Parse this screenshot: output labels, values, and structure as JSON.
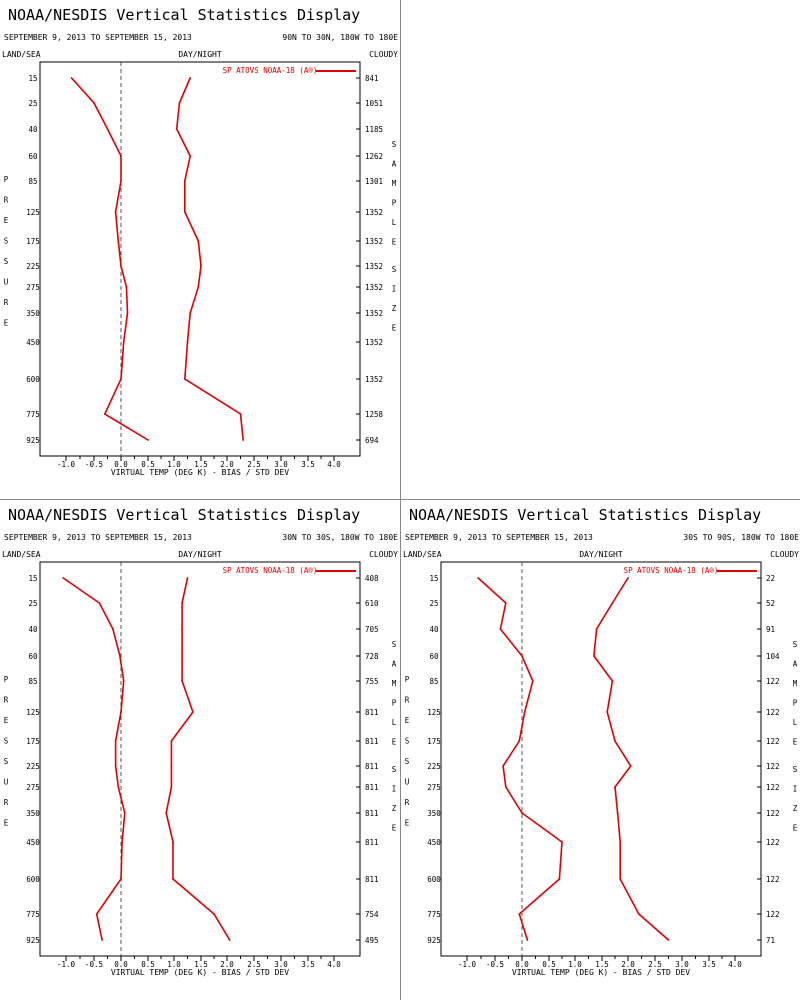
{
  "chart_data": [
    {
      "type": "line",
      "title": "NOAA/NESDIS Vertical Statistics Display",
      "date_range": "SEPTEMBER 9, 2013 TO SEPTEMBER 15, 2013",
      "region": "90N TO 30N, 180W TO 180E",
      "top_left_label": "LAND/SEA",
      "top_center_label": "DAY/NIGHT",
      "top_right_label": "CLOUDY",
      "left_axis_label": "PRESSURE",
      "right_axis_label": "SAMPLE SIZE",
      "xlabel": "VIRTUAL TEMP (DEG K) - BIAS / STD DEV",
      "legend": "SP ATOVS NOAA-18 (A®)",
      "xlim": [
        -1.5,
        4.5
      ],
      "x_ticks": [
        "-1.0",
        "-0.5",
        "0.0",
        "0.5",
        "1.0",
        "1.5",
        "2.0",
        "2.5",
        "3.0",
        "3.5",
        "4.0"
      ],
      "pressure_levels": [
        "15",
        "25",
        "40",
        "60",
        "85",
        "125",
        "175",
        "225",
        "275",
        "350",
        "450",
        "600",
        "775",
        "925"
      ],
      "sample_sizes": [
        "841",
        "1051",
        "1185",
        "1262",
        "1301",
        "1352",
        "1352",
        "1352",
        "1352",
        "1352",
        "1352",
        "1352",
        "1258",
        "694"
      ],
      "series": [
        {
          "role": "bias",
          "values": [
            -0.9,
            -0.5,
            -0.25,
            0.0,
            0.0,
            -0.1,
            -0.05,
            0.0,
            0.1,
            0.12,
            0.05,
            0.0,
            -0.3,
            0.5
          ]
        },
        {
          "role": "std_dev",
          "values": [
            1.3,
            1.1,
            1.05,
            1.3,
            1.2,
            1.2,
            1.45,
            1.5,
            1.45,
            1.3,
            1.25,
            1.2,
            2.25,
            2.3
          ]
        }
      ]
    },
    {
      "type": "line",
      "title": "NOAA/NESDIS Vertical Statistics Display",
      "date_range": "SEPTEMBER 9, 2013 TO SEPTEMBER 15, 2013",
      "region": "30N TO 30S, 180W TO 180E",
      "top_left_label": "LAND/SEA",
      "top_center_label": "DAY/NIGHT",
      "top_right_label": "CLOUDY",
      "left_axis_label": "PRESSURE",
      "right_axis_label": "SAMPLE SIZE",
      "xlabel": "VIRTUAL TEMP (DEG K) - BIAS / STD DEV",
      "legend": "SP ATOVS NOAA-18 (A®)",
      "xlim": [
        -1.5,
        4.5
      ],
      "x_ticks": [
        "-1.0",
        "-0.5",
        "0.0",
        "0.5",
        "1.0",
        "1.5",
        "2.0",
        "2.5",
        "3.0",
        "3.5",
        "4.0"
      ],
      "pressure_levels": [
        "15",
        "25",
        "40",
        "60",
        "85",
        "125",
        "175",
        "225",
        "275",
        "350",
        "450",
        "600",
        "775",
        "925"
      ],
      "sample_sizes": [
        "408",
        "610",
        "705",
        "728",
        "755",
        "811",
        "811",
        "811",
        "811",
        "811",
        "811",
        "811",
        "754",
        "495"
      ],
      "series": [
        {
          "role": "bias",
          "values": [
            -1.05,
            -0.4,
            -0.15,
            -0.02,
            0.05,
            0.0,
            -0.1,
            -0.1,
            -0.05,
            0.07,
            0.02,
            0.0,
            -0.45,
            -0.35
          ]
        },
        {
          "role": "std_dev",
          "values": [
            1.25,
            1.15,
            1.15,
            1.15,
            1.15,
            1.35,
            0.95,
            0.95,
            0.95,
            0.85,
            0.98,
            0.98,
            1.75,
            2.05
          ]
        }
      ]
    },
    {
      "type": "line",
      "title": "NOAA/NESDIS Vertical Statistics Display",
      "date_range": "SEPTEMBER 9, 2013 TO SEPTEMBER 15, 2013",
      "region": "30S TO 90S, 180W TO 180E",
      "top_left_label": "LAND/SEA",
      "top_center_label": "DAY/NIGHT",
      "top_right_label": "CLOUDY",
      "left_axis_label": "PRESSURE",
      "right_axis_label": "SAMPLE SIZE",
      "xlabel": "VIRTUAL TEMP (DEG K) - BIAS / STD DEV",
      "legend": "SP ATOVS NOAA-18 (A®)",
      "xlim": [
        -1.5,
        4.5
      ],
      "x_ticks": [
        "-1.0",
        "-0.5",
        "0.0",
        "0.5",
        "1.0",
        "1.5",
        "2.0",
        "2.5",
        "3.0",
        "3.5",
        "4.0"
      ],
      "pressure_levels": [
        "15",
        "25",
        "40",
        "60",
        "85",
        "125",
        "175",
        "225",
        "275",
        "350",
        "450",
        "600",
        "775",
        "925"
      ],
      "sample_sizes": [
        "22",
        "52",
        "91",
        "104",
        "122",
        "122",
        "122",
        "122",
        "122",
        "122",
        "122",
        "122",
        "122",
        "71"
      ],
      "series": [
        {
          "role": "bias",
          "values": [
            -0.8,
            -0.3,
            -0.4,
            0.0,
            0.2,
            0.05,
            -0.05,
            -0.35,
            -0.3,
            0.0,
            0.75,
            0.7,
            -0.05,
            0.1
          ]
        },
        {
          "role": "std_dev",
          "values": [
            2.0,
            1.7,
            1.4,
            1.35,
            1.7,
            1.6,
            1.75,
            2.05,
            1.75,
            1.8,
            1.85,
            1.85,
            2.2,
            2.75
          ]
        }
      ]
    }
  ],
  "colors": {
    "series_line": "#dd0000",
    "axis": "#000000",
    "zero_line": "#555555",
    "divider": "#888888",
    "background": "#ffffff"
  }
}
